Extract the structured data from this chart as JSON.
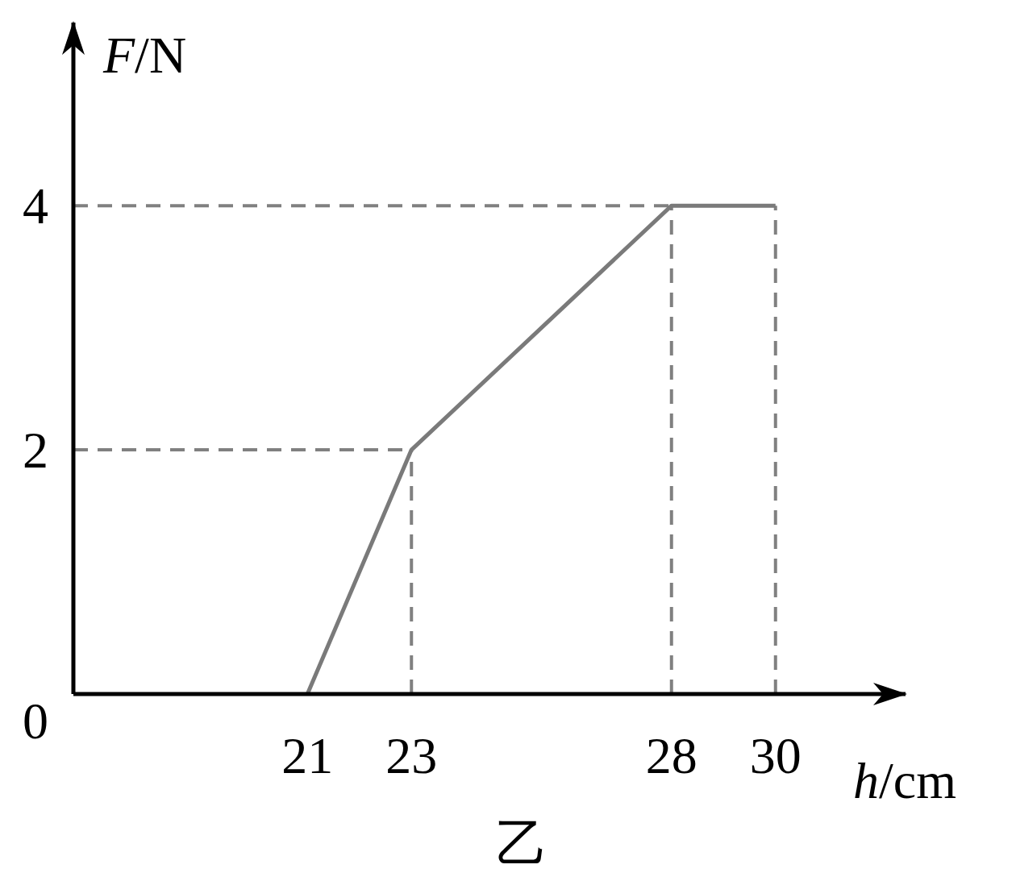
{
  "chart_data": {
    "type": "line",
    "xlabel": "h/cm",
    "ylabel": "F/N",
    "annotations": [
      "乙"
    ],
    "x": [
      21,
      23,
      28,
      30
    ],
    "series": [
      {
        "color": "#7a7a7a",
        "values": [
          0,
          2,
          4,
          4
        ]
      }
    ],
    "xlim": [
      16.5,
      32.5
    ],
    "xticks": [
      21,
      23,
      28,
      30
    ],
    "ylim": [
      0,
      5.5
    ],
    "yticks": [
      0,
      2,
      4
    ],
    "ref_lines": [
      {
        "axis": "x",
        "value": 23,
        "color": "#808080",
        "line_style": "dashed"
      },
      {
        "axis": "x",
        "value": 28,
        "color": "#808080",
        "line_style": "dashed"
      },
      {
        "axis": "x",
        "value": 30,
        "color": "#808080",
        "line_style": "dashed"
      },
      {
        "axis": "y",
        "value": 2,
        "color": "#808080",
        "line_style": "dashed"
      },
      {
        "axis": "y",
        "value": 4,
        "color": "#808080",
        "line_style": "dashed"
      }
    ],
    "grid": false,
    "marker": "none",
    "line_style": "solid"
  }
}
